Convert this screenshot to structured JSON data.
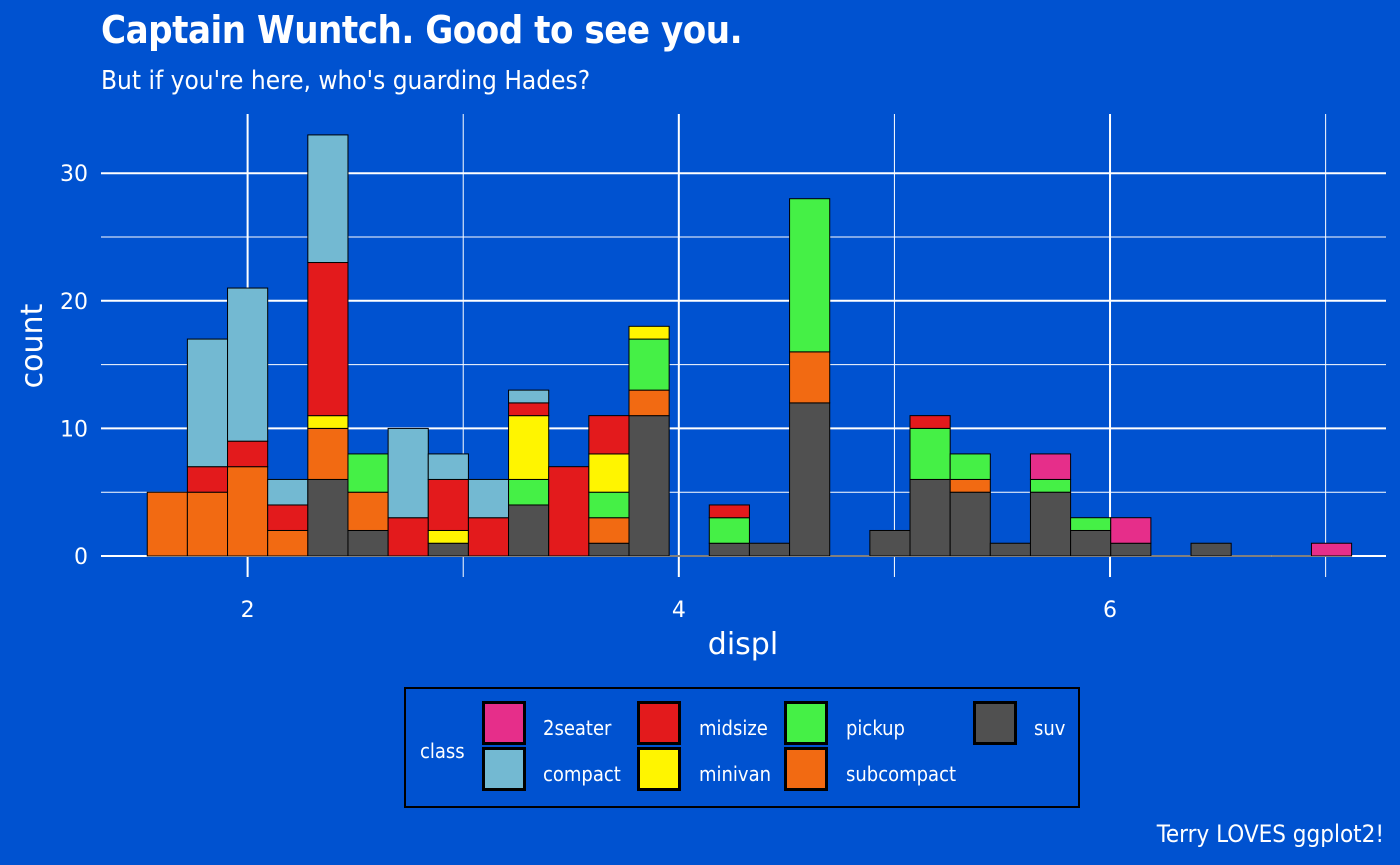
{
  "title": "Captain Wuntch. Good to see you.",
  "subtitle": "But if you're here, who's guarding Hades?",
  "caption": "Terry LOVES ggplot2!",
  "chart_data": {
    "type": "bar",
    "stacked": true,
    "xlabel": "displ",
    "ylabel": "count",
    "xlim": [
      1.32,
      7.28
    ],
    "ylim": [
      0,
      33
    ],
    "x_ticks": [
      "2",
      "4",
      "6"
    ],
    "x_tick_values": [
      2,
      4,
      6
    ],
    "y_ticks": [
      "0",
      "10",
      "20",
      "30"
    ],
    "y_tick_values": [
      0,
      10,
      20,
      30
    ],
    "grid": true,
    "legend_position": "bottom",
    "legend_title": "class",
    "bin_width": 0.1862,
    "first_bin_start": 1.5345,
    "series": [
      {
        "name": "2seater",
        "color": "#E62E8A"
      },
      {
        "name": "compact",
        "color": "#73B9D2"
      },
      {
        "name": "midsize",
        "color": "#E31A1C"
      },
      {
        "name": "minivan",
        "color": "#FFF500"
      },
      {
        "name": "pickup",
        "color": "#45F046"
      },
      {
        "name": "subcompact",
        "color": "#F26A12"
      },
      {
        "name": "suv",
        "color": "#505050"
      }
    ],
    "bins": [
      {
        "2seater": 0,
        "compact": 0,
        "midsize": 0,
        "minivan": 0,
        "pickup": 0,
        "subcompact": 5,
        "suv": 0
      },
      {
        "2seater": 0,
        "compact": 10,
        "midsize": 2,
        "minivan": 0,
        "pickup": 0,
        "subcompact": 5,
        "suv": 0
      },
      {
        "2seater": 0,
        "compact": 12,
        "midsize": 2,
        "minivan": 0,
        "pickup": 0,
        "subcompact": 7,
        "suv": 0
      },
      {
        "2seater": 0,
        "compact": 2,
        "midsize": 2,
        "minivan": 0,
        "pickup": 0,
        "subcompact": 2,
        "suv": 0
      },
      {
        "2seater": 0,
        "compact": 10,
        "midsize": 12,
        "minivan": 1,
        "pickup": 0,
        "subcompact": 4,
        "suv": 6
      },
      {
        "2seater": 0,
        "compact": 0,
        "midsize": 0,
        "minivan": 0,
        "pickup": 3,
        "subcompact": 3,
        "suv": 2
      },
      {
        "2seater": 0,
        "compact": 7,
        "midsize": 3,
        "minivan": 0,
        "pickup": 0,
        "subcompact": 0,
        "suv": 0
      },
      {
        "2seater": 0,
        "compact": 2,
        "midsize": 4,
        "minivan": 1,
        "pickup": 0,
        "subcompact": 0,
        "suv": 1
      },
      {
        "2seater": 0,
        "compact": 3,
        "midsize": 3,
        "minivan": 0,
        "pickup": 0,
        "subcompact": 0,
        "suv": 0
      },
      {
        "2seater": 0,
        "compact": 1,
        "midsize": 1,
        "minivan": 5,
        "pickup": 2,
        "subcompact": 0,
        "suv": 4
      },
      {
        "2seater": 0,
        "compact": 0,
        "midsize": 7,
        "minivan": 0,
        "pickup": 0,
        "subcompact": 0,
        "suv": 0
      },
      {
        "2seater": 0,
        "compact": 0,
        "midsize": 3,
        "minivan": 3,
        "pickup": 2,
        "subcompact": 2,
        "suv": 1
      },
      {
        "2seater": 0,
        "compact": 0,
        "midsize": 0,
        "minivan": 1,
        "pickup": 4,
        "subcompact": 2,
        "suv": 11
      },
      {
        "2seater": 0,
        "compact": 0,
        "midsize": 0,
        "minivan": 0,
        "pickup": 0,
        "subcompact": 0,
        "suv": 0
      },
      {
        "2seater": 0,
        "compact": 0,
        "midsize": 1,
        "minivan": 0,
        "pickup": 2,
        "subcompact": 0,
        "suv": 1
      },
      {
        "2seater": 0,
        "compact": 0,
        "midsize": 0,
        "minivan": 0,
        "pickup": 0,
        "subcompact": 0,
        "suv": 1
      },
      {
        "2seater": 0,
        "compact": 0,
        "midsize": 0,
        "minivan": 0,
        "pickup": 12,
        "subcompact": 4,
        "suv": 12
      },
      {
        "2seater": 0,
        "compact": 0,
        "midsize": 0,
        "minivan": 0,
        "pickup": 0,
        "subcompact": 0,
        "suv": 0
      },
      {
        "2seater": 0,
        "compact": 0,
        "midsize": 0,
        "minivan": 0,
        "pickup": 0,
        "subcompact": 0,
        "suv": 2
      },
      {
        "2seater": 0,
        "compact": 0,
        "midsize": 1,
        "minivan": 0,
        "pickup": 4,
        "subcompact": 0,
        "suv": 6
      },
      {
        "2seater": 0,
        "compact": 0,
        "midsize": 0,
        "minivan": 0,
        "pickup": 2,
        "subcompact": 1,
        "suv": 5
      },
      {
        "2seater": 0,
        "compact": 0,
        "midsize": 0,
        "minivan": 0,
        "pickup": 0,
        "subcompact": 0,
        "suv": 1
      },
      {
        "2seater": 2,
        "compact": 0,
        "midsize": 0,
        "minivan": 0,
        "pickup": 1,
        "subcompact": 0,
        "suv": 5
      },
      {
        "2seater": 0,
        "compact": 0,
        "midsize": 0,
        "minivan": 0,
        "pickup": 1,
        "subcompact": 0,
        "suv": 2
      },
      {
        "2seater": 2,
        "compact": 0,
        "midsize": 0,
        "minivan": 0,
        "pickup": 0,
        "subcompact": 0,
        "suv": 1
      },
      {
        "2seater": 0,
        "compact": 0,
        "midsize": 0,
        "minivan": 0,
        "pickup": 0,
        "subcompact": 0,
        "suv": 0
      },
      {
        "2seater": 0,
        "compact": 0,
        "midsize": 0,
        "minivan": 0,
        "pickup": 0,
        "subcompact": 0,
        "suv": 1
      },
      {
        "2seater": 0,
        "compact": 0,
        "midsize": 0,
        "minivan": 0,
        "pickup": 0,
        "subcompact": 0,
        "suv": 0
      },
      {
        "2seater": 0,
        "compact": 0,
        "midsize": 0,
        "minivan": 0,
        "pickup": 0,
        "subcompact": 0,
        "suv": 0
      },
      {
        "2seater": 1,
        "compact": 0,
        "midsize": 0,
        "minivan": 0,
        "pickup": 0,
        "subcompact": 0,
        "suv": 0
      }
    ]
  }
}
